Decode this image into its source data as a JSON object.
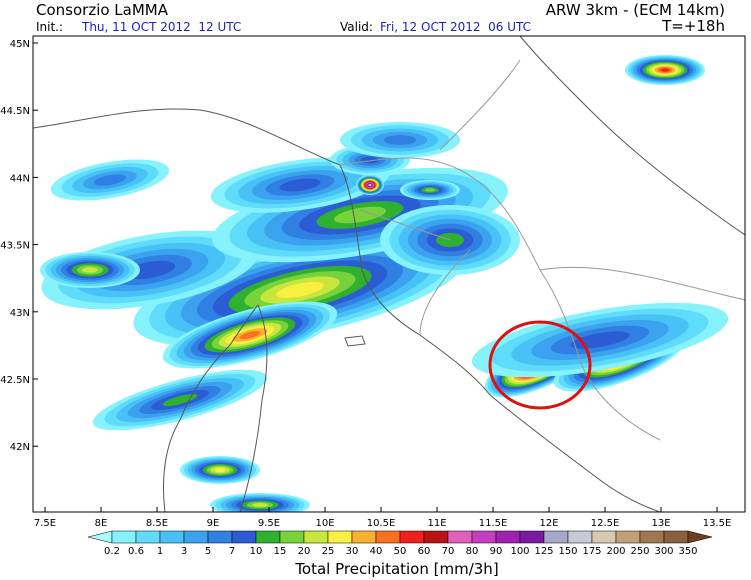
{
  "header": {
    "left_title": "Consorzio LaMMA",
    "init_label": "Init.:",
    "init_time": "Thu, 11 OCT 2012  12 UTC",
    "right_title": "ARW 3km - (ECM 14km)",
    "valid_label": "Valid:",
    "valid_time": "Fri, 12 OCT 2012  06 UTC",
    "lead_time": "T=+18h"
  },
  "map": {
    "lat_labels": [
      "45N",
      "44.5N",
      "44N",
      "43.5N",
      "43N",
      "42.5N",
      "42N"
    ],
    "lon_labels": [
      "7.5E",
      "8E",
      "8.5E",
      "9E",
      "9.5E",
      "10E",
      "10.5E",
      "11E",
      "11.5E",
      "12E",
      "12.5E",
      "13E",
      "13.5E"
    ]
  },
  "colorbar": {
    "title": "Total Precipitation [mm/3h]",
    "levels": [
      0.2,
      0.6,
      1,
      3,
      5,
      7,
      10,
      15,
      20,
      25,
      30,
      40,
      50,
      60,
      70,
      80,
      90,
      100,
      125,
      150,
      175,
      200,
      250,
      300,
      350
    ],
    "colors": [
      "#a8fcfc",
      "#86f2fc",
      "#5fdcfc",
      "#48c2f6",
      "#3aa2ee",
      "#2f80e2",
      "#2c5cd4",
      "#2fb02f",
      "#78d23c",
      "#c8e63c",
      "#f8f040",
      "#f8b030",
      "#f87020",
      "#f02020",
      "#b81414",
      "#e060c0",
      "#c040c0",
      "#a020b0",
      "#7a1aa0",
      "#a8a8c8",
      "#c8c8d8",
      "#d8c8b0",
      "#c0a078",
      "#a07850",
      "#886040",
      "#6a4020"
    ]
  }
}
